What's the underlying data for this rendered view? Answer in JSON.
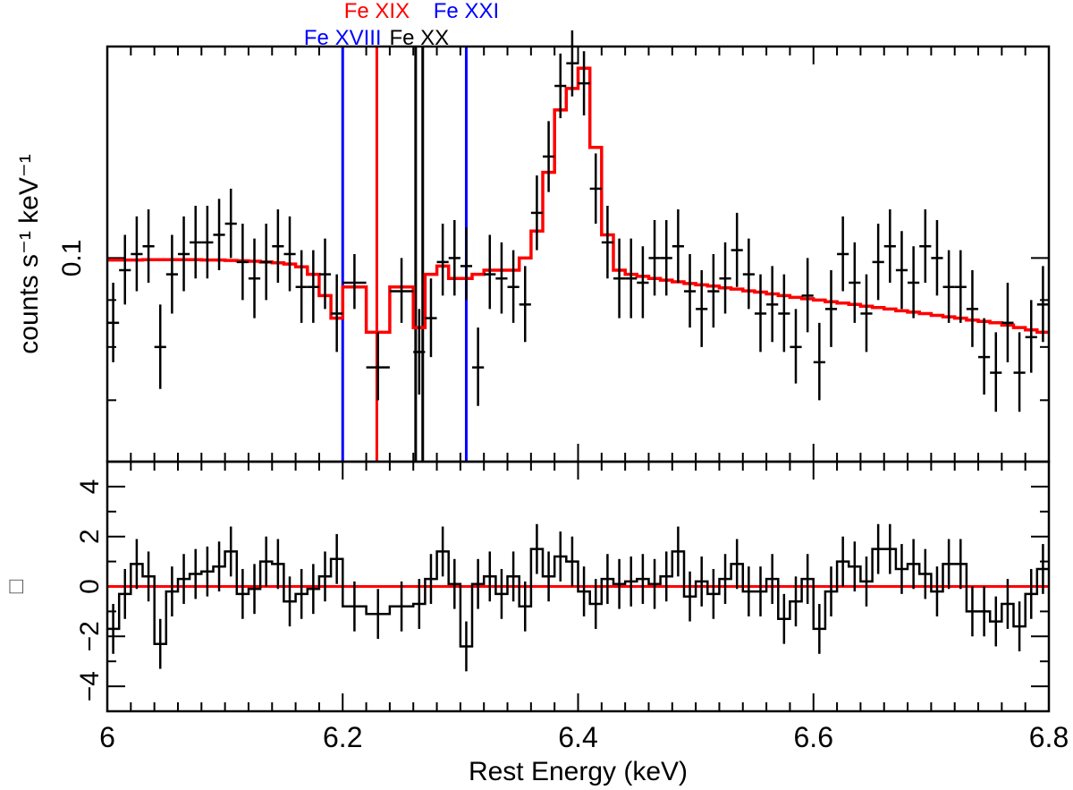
{
  "chart_data": [
    {
      "type": "scatter",
      "panel": "spectrum",
      "ylabel": "counts s⁻¹ keV⁻¹",
      "xlim": [
        6.0,
        6.8
      ],
      "ylim": [
        0.06,
        0.17
      ],
      "y_scale": "log",
      "y_ticks": [
        0.1
      ],
      "y_tick_labels": [
        "0.1"
      ],
      "y_minor_ticks": [
        0.07,
        0.08,
        0.09
      ],
      "colors": {
        "data": "#000000",
        "model": "#ff0000"
      },
      "series": [
        {
          "name": "data",
          "x": [
            6.005,
            6.015,
            6.025,
            6.035,
            6.045,
            6.055,
            6.065,
            6.075,
            6.085,
            6.095,
            6.105,
            6.115,
            6.125,
            6.135,
            6.145,
            6.155,
            6.165,
            6.175,
            6.185,
            6.195,
            6.21,
            6.23,
            6.25,
            6.265,
            6.275,
            6.285,
            6.295,
            6.305,
            6.315,
            6.325,
            6.335,
            6.345,
            6.355,
            6.365,
            6.375,
            6.385,
            6.395,
            6.405,
            6.415,
            6.425,
            6.435,
            6.445,
            6.455,
            6.465,
            6.475,
            6.485,
            6.495,
            6.505,
            6.515,
            6.525,
            6.535,
            6.545,
            6.555,
            6.565,
            6.575,
            6.585,
            6.595,
            6.605,
            6.615,
            6.625,
            6.635,
            6.645,
            6.655,
            6.665,
            6.675,
            6.685,
            6.695,
            6.705,
            6.715,
            6.725,
            6.735,
            6.745,
            6.755,
            6.765,
            6.775,
            6.785,
            6.795
          ],
          "y": [
            0.085,
            0.097,
            0.101,
            0.103,
            0.08,
            0.096,
            0.101,
            0.104,
            0.104,
            0.106,
            0.109,
            0.099,
            0.095,
            0.099,
            0.103,
            0.101,
            0.093,
            0.093,
            0.096,
            0.087,
            0.094,
            0.076,
            0.092,
            0.079,
            0.086,
            0.099,
            0.1,
            0.098,
            0.076,
            0.096,
            0.095,
            0.093,
            0.089,
            0.112,
            0.129,
            0.154,
            0.163,
            0.155,
            0.119,
            0.104,
            0.095,
            0.095,
            0.094,
            0.1,
            0.1,
            0.103,
            0.092,
            0.088,
            0.092,
            0.095,
            0.102,
            0.096,
            0.087,
            0.089,
            0.087,
            0.08,
            0.091,
            0.077,
            0.088,
            0.101,
            0.094,
            0.087,
            0.099,
            0.103,
            0.097,
            0.094,
            0.103,
            0.1,
            0.093,
            0.093,
            0.088,
            0.078,
            0.075,
            0.085,
            0.075,
            0.082,
            0.089
          ],
          "err_low": [
            0.008,
            0.008,
            0.009,
            0.009,
            0.008,
            0.009,
            0.009,
            0.009,
            0.009,
            0.009,
            0.009,
            0.009,
            0.009,
            0.009,
            0.009,
            0.009,
            0.008,
            0.008,
            0.008,
            0.008,
            0.006,
            0.006,
            0.007,
            0.008,
            0.008,
            0.008,
            0.009,
            0.008,
            0.007,
            0.008,
            0.008,
            0.008,
            0.008,
            0.01,
            0.011,
            0.012,
            0.013,
            0.012,
            0.01,
            0.009,
            0.009,
            0.009,
            0.008,
            0.009,
            0.009,
            0.009,
            0.008,
            0.008,
            0.008,
            0.008,
            0.009,
            0.008,
            0.008,
            0.008,
            0.008,
            0.007,
            0.008,
            0.007,
            0.008,
            0.009,
            0.009,
            0.008,
            0.009,
            0.009,
            0.009,
            0.008,
            0.009,
            0.009,
            0.008,
            0.008,
            0.008,
            0.007,
            0.007,
            0.008,
            0.007,
            0.007,
            0.008
          ],
          "err_high": [
            0.009,
            0.009,
            0.01,
            0.01,
            0.009,
            0.01,
            0.01,
            0.01,
            0.01,
            0.01,
            0.01,
            0.01,
            0.01,
            0.01,
            0.01,
            0.01,
            0.009,
            0.009,
            0.009,
            0.009,
            0.007,
            0.007,
            0.008,
            0.009,
            0.009,
            0.01,
            0.01,
            0.01,
            0.008,
            0.01,
            0.009,
            0.009,
            0.009,
            0.011,
            0.012,
            0.013,
            0.014,
            0.013,
            0.011,
            0.01,
            0.01,
            0.01,
            0.009,
            0.01,
            0.01,
            0.01,
            0.009,
            0.009,
            0.009,
            0.009,
            0.01,
            0.009,
            0.009,
            0.009,
            0.009,
            0.008,
            0.009,
            0.008,
            0.009,
            0.01,
            0.01,
            0.009,
            0.01,
            0.01,
            0.01,
            0.009,
            0.01,
            0.01,
            0.009,
            0.009,
            0.009,
            0.008,
            0.008,
            0.009,
            0.008,
            0.008,
            0.009
          ],
          "half_width": [
            0.005,
            0.005,
            0.005,
            0.005,
            0.005,
            0.005,
            0.005,
            0.005,
            0.005,
            0.005,
            0.005,
            0.005,
            0.005,
            0.005,
            0.005,
            0.005,
            0.005,
            0.005,
            0.005,
            0.005,
            0.01,
            0.01,
            0.01,
            0.005,
            0.005,
            0.005,
            0.005,
            0.005,
            0.005,
            0.005,
            0.005,
            0.005,
            0.005,
            0.005,
            0.005,
            0.005,
            0.005,
            0.005,
            0.005,
            0.005,
            0.005,
            0.005,
            0.005,
            0.005,
            0.005,
            0.005,
            0.005,
            0.005,
            0.005,
            0.005,
            0.005,
            0.005,
            0.005,
            0.005,
            0.005,
            0.005,
            0.005,
            0.005,
            0.005,
            0.005,
            0.005,
            0.005,
            0.005,
            0.005,
            0.005,
            0.005,
            0.005,
            0.005,
            0.005,
            0.005,
            0.005,
            0.005,
            0.005,
            0.005,
            0.005,
            0.005,
            0.005
          ]
        },
        {
          "name": "model",
          "type": "step",
          "x_edges": [
            6.0,
            6.01,
            6.02,
            6.03,
            6.04,
            6.05,
            6.06,
            6.07,
            6.08,
            6.09,
            6.1,
            6.11,
            6.12,
            6.13,
            6.14,
            6.15,
            6.16,
            6.17,
            6.18,
            6.19,
            6.2,
            6.22,
            6.24,
            6.26,
            6.27,
            6.28,
            6.29,
            6.3,
            6.31,
            6.32,
            6.33,
            6.34,
            6.35,
            6.36,
            6.37,
            6.38,
            6.39,
            6.4,
            6.41,
            6.42,
            6.43,
            6.44,
            6.45,
            6.46,
            6.47,
            6.48,
            6.49,
            6.5,
            6.51,
            6.52,
            6.53,
            6.54,
            6.55,
            6.56,
            6.57,
            6.58,
            6.59,
            6.6,
            6.61,
            6.62,
            6.63,
            6.64,
            6.65,
            6.66,
            6.67,
            6.68,
            6.69,
            6.7,
            6.71,
            6.72,
            6.73,
            6.74,
            6.75,
            6.76,
            6.77,
            6.78,
            6.79,
            6.8
          ],
          "y": [
            0.0995,
            0.0995,
            0.0995,
            0.0996,
            0.0996,
            0.0996,
            0.0996,
            0.0996,
            0.0995,
            0.0995,
            0.0994,
            0.0993,
            0.0992,
            0.099,
            0.0988,
            0.0985,
            0.0978,
            0.096,
            0.091,
            0.086,
            0.093,
            0.083,
            0.093,
            0.084,
            0.096,
            0.098,
            0.095,
            0.095,
            0.096,
            0.097,
            0.097,
            0.097,
            0.1,
            0.107,
            0.124,
            0.145,
            0.153,
            0.161,
            0.132,
            0.106,
            0.097,
            0.096,
            0.0955,
            0.095,
            0.0946,
            0.0942,
            0.0938,
            0.0935,
            0.0932,
            0.0928,
            0.0925,
            0.0921,
            0.0918,
            0.0914,
            0.091,
            0.0906,
            0.0903,
            0.09,
            0.0896,
            0.0893,
            0.089,
            0.0886,
            0.0883,
            0.088,
            0.0876,
            0.0873,
            0.087,
            0.0866,
            0.0863,
            0.086,
            0.0856,
            0.0853,
            0.085,
            0.0845,
            0.084,
            0.0835,
            0.083
          ]
        }
      ],
      "line_markers": [
        {
          "label": "Fe XVIII",
          "energy": 6.2,
          "color": "#0000ff",
          "label_row": "lower"
        },
        {
          "label": "Fe XIX",
          "energy": 6.229,
          "color": "#ff0000",
          "label_row": "upper"
        },
        {
          "label": "Fe XX",
          "energy": 6.262,
          "color": "#000000",
          "label_row": "lower",
          "second_energy": 6.268
        },
        {
          "label": "Fe XXI",
          "energy": 6.305,
          "color": "#0000ff",
          "label_row": "upper"
        }
      ]
    },
    {
      "type": "line",
      "panel": "residuals",
      "xlabel": "Rest Energy (keV)",
      "ylabel_glyph": "□",
      "xlim": [
        6.0,
        6.8
      ],
      "ylim": [
        -5,
        5
      ],
      "y_ticks": [
        -4,
        -2,
        0,
        2,
        4
      ],
      "y_tick_labels": [
        "−4",
        "−2",
        "0",
        "2",
        "4"
      ],
      "x_ticks": [
        6.0,
        6.2,
        6.4,
        6.6,
        6.8
      ],
      "x_tick_labels": [
        "6",
        "6.2",
        "6.4",
        "6.6",
        "6.8"
      ],
      "colors": {
        "data": "#000000",
        "zero_line": "#ff0000"
      },
      "series": [
        {
          "name": "residual",
          "x": [
            6.005,
            6.015,
            6.025,
            6.035,
            6.045,
            6.055,
            6.065,
            6.075,
            6.085,
            6.095,
            6.105,
            6.115,
            6.125,
            6.135,
            6.145,
            6.155,
            6.165,
            6.175,
            6.185,
            6.195,
            6.21,
            6.23,
            6.25,
            6.265,
            6.275,
            6.285,
            6.295,
            6.305,
            6.315,
            6.325,
            6.335,
            6.345,
            6.355,
            6.365,
            6.375,
            6.385,
            6.395,
            6.405,
            6.415,
            6.425,
            6.435,
            6.445,
            6.455,
            6.465,
            6.475,
            6.485,
            6.495,
            6.505,
            6.515,
            6.525,
            6.535,
            6.545,
            6.555,
            6.565,
            6.575,
            6.585,
            6.595,
            6.605,
            6.615,
            6.625,
            6.635,
            6.645,
            6.655,
            6.665,
            6.675,
            6.685,
            6.695,
            6.705,
            6.715,
            6.725,
            6.735,
            6.745,
            6.755,
            6.765,
            6.775,
            6.785,
            6.795
          ],
          "y": [
            -1.7,
            -0.3,
            0.9,
            0.4,
            -2.3,
            -0.2,
            0.3,
            0.5,
            0.6,
            0.8,
            1.4,
            -0.3,
            -0.1,
            1.0,
            0.9,
            -0.6,
            -0.3,
            -0.1,
            0.4,
            1.1,
            -0.8,
            -1.1,
            -0.8,
            -0.7,
            0.3,
            1.4,
            0.1,
            -2.4,
            0.1,
            0.4,
            -0.3,
            0.4,
            -0.8,
            1.5,
            0.4,
            1.2,
            1.0,
            -0.2,
            -0.7,
            0.3,
            0.1,
            0.2,
            0.3,
            0.1,
            0.4,
            1.4,
            -0.4,
            0.2,
            -0.3,
            0.3,
            0.9,
            -0.2,
            -0.2,
            0.3,
            -1.3,
            -0.6,
            0.3,
            -1.7,
            -0.2,
            1.0,
            0.8,
            0.2,
            1.5,
            1.5,
            0.7,
            0.9,
            0.5,
            -0.2,
            0.9,
            0.9,
            -1.0,
            -1.0,
            -1.4,
            -0.7,
            -1.6,
            -0.3,
            0.7
          ],
          "err": [
            1.0,
            1.0,
            1.0,
            1.0,
            1.0,
            1.0,
            1.0,
            1.0,
            1.0,
            1.0,
            1.0,
            1.0,
            1.0,
            1.0,
            1.0,
            1.0,
            1.0,
            1.0,
            1.0,
            1.0,
            1.0,
            1.0,
            1.0,
            1.0,
            1.0,
            1.0,
            1.0,
            1.0,
            1.0,
            1.0,
            1.0,
            1.0,
            1.0,
            1.0,
            1.0,
            1.0,
            1.0,
            1.0,
            1.0,
            1.0,
            1.0,
            1.0,
            1.0,
            1.0,
            1.0,
            1.0,
            1.0,
            1.0,
            1.0,
            1.0,
            1.0,
            1.0,
            1.0,
            1.0,
            1.0,
            1.0,
            1.0,
            1.0,
            1.0,
            1.0,
            1.0,
            1.0,
            1.0,
            1.0,
            1.0,
            1.0,
            1.0,
            1.0,
            1.0,
            1.0,
            1.0,
            1.0,
            1.0,
            1.0,
            1.0,
            1.0,
            1.0
          ]
        }
      ]
    }
  ]
}
